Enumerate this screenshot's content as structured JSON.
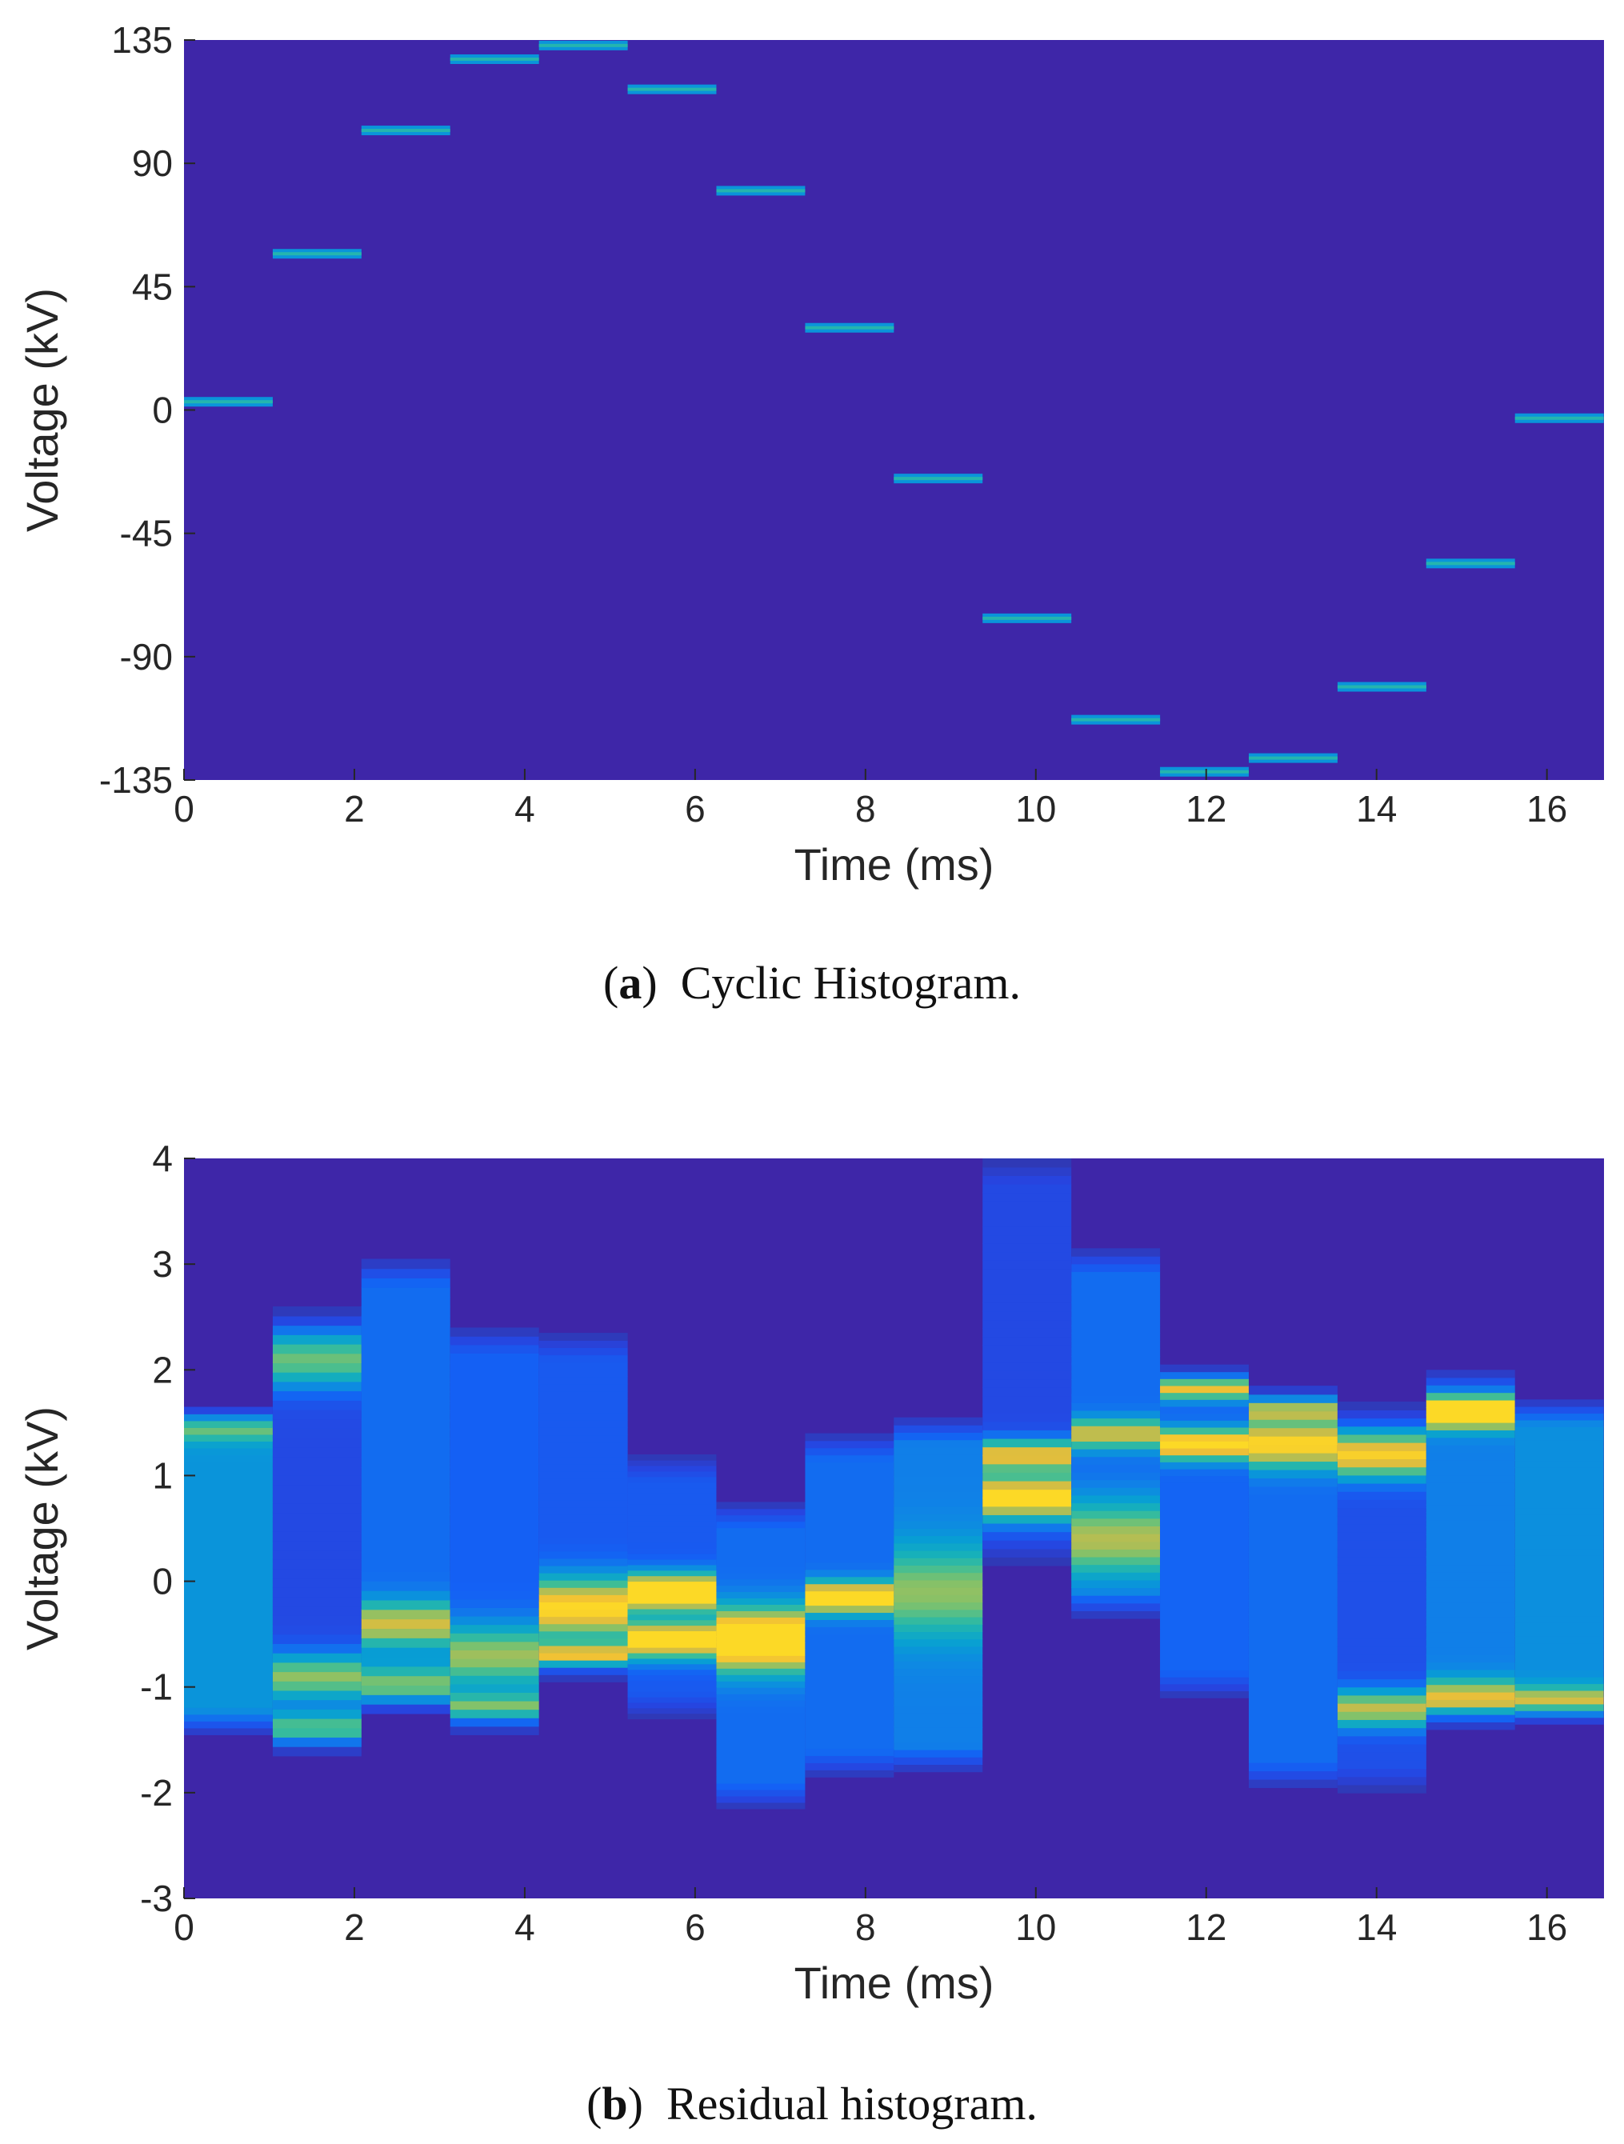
{
  "chart_data": [
    {
      "type": "heatmap",
      "id": "a",
      "caption_label": "a",
      "caption_text": "Cyclic Histogram.",
      "xlabel": "Time (ms)",
      "ylabel": "Voltage (kV)",
      "xlim": [
        0,
        16.67
      ],
      "ylim": [
        -135,
        135
      ],
      "xticks": [
        0,
        2,
        4,
        6,
        8,
        10,
        12,
        14,
        16
      ],
      "yticks": [
        -135,
        -90,
        -45,
        0,
        45,
        90,
        135
      ],
      "background_color": "#3e26a8",
      "segment_width_ms": 1.0417,
      "segments": [
        {
          "t0": 0.0,
          "v": 3
        },
        {
          "t0": 1.042,
          "v": 57
        },
        {
          "t0": 2.083,
          "v": 102
        },
        {
          "t0": 3.125,
          "v": 128
        },
        {
          "t0": 4.167,
          "v": 133
        },
        {
          "t0": 5.208,
          "v": 117
        },
        {
          "t0": 6.25,
          "v": 80
        },
        {
          "t0": 7.292,
          "v": 30
        },
        {
          "t0": 8.333,
          "v": -25
        },
        {
          "t0": 9.375,
          "v": -76
        },
        {
          "t0": 10.417,
          "v": -113
        },
        {
          "t0": 11.458,
          "v": -132
        },
        {
          "t0": 12.5,
          "v": -127
        },
        {
          "t0": 13.542,
          "v": -101
        },
        {
          "t0": 14.583,
          "v": -56
        },
        {
          "t0": 15.625,
          "v": -3
        }
      ]
    },
    {
      "type": "heatmap",
      "id": "b",
      "caption_label": "b",
      "caption_text": "Residual histogram.",
      "xlabel": "Time (ms)",
      "ylabel": "Voltage (kV)",
      "xlim": [
        0,
        16.67
      ],
      "ylim": [
        -3,
        4
      ],
      "xticks": [
        0,
        2,
        4,
        6,
        8,
        10,
        12,
        14,
        16
      ],
      "yticks": [
        -3,
        -2,
        -1,
        0,
        1,
        2,
        3,
        4
      ],
      "background_color": "#3e26a8",
      "segment_width_ms": 1.0417,
      "segments": [
        {
          "t0": 0.0,
          "lo": -1.45,
          "hi": 1.65,
          "base": 0.42,
          "peaks": [
            [
              1.5,
              0.1,
              0.45
            ]
          ]
        },
        {
          "t0": 1.042,
          "lo": -1.65,
          "hi": 2.6,
          "base": 0.2,
          "peaks": [
            [
              2.1,
              0.18,
              0.5
            ],
            [
              -0.9,
              0.15,
              0.55
            ],
            [
              -1.4,
              0.12,
              0.5
            ]
          ]
        },
        {
          "t0": 2.083,
          "lo": -1.25,
          "hi": 3.05,
          "base": 0.3,
          "peaks": [
            [
              -0.4,
              0.15,
              0.55
            ],
            [
              -1.0,
              0.15,
              0.45
            ]
          ]
        },
        {
          "t0": 3.125,
          "lo": -1.45,
          "hi": 2.4,
          "base": 0.27,
          "peaks": [
            [
              -0.7,
              0.2,
              0.5
            ],
            [
              -1.2,
              0.1,
              0.45
            ]
          ]
        },
        {
          "t0": 4.167,
          "lo": -0.95,
          "hi": 2.35,
          "base": 0.25,
          "peaks": [
            [
              -0.25,
              0.2,
              0.75
            ],
            [
              -0.7,
              0.08,
              0.65
            ]
          ]
        },
        {
          "t0": 5.208,
          "lo": -1.3,
          "hi": 1.2,
          "base": 0.25,
          "peaks": [
            [
              -0.1,
              0.12,
              0.95
            ],
            [
              -0.55,
              0.12,
              0.85
            ]
          ]
        },
        {
          "t0": 6.25,
          "lo": -2.15,
          "hi": 0.75,
          "base": 0.3,
          "peaks": [
            [
              -0.55,
              0.2,
              0.95
            ]
          ]
        },
        {
          "t0": 7.292,
          "lo": -1.85,
          "hi": 1.4,
          "base": 0.3,
          "peaks": [
            [
              -0.15,
              0.1,
              0.85
            ]
          ]
        },
        {
          "t0": 8.333,
          "lo": -1.8,
          "hi": 1.55,
          "base": 0.35,
          "peaks": [
            [
              -0.1,
              0.3,
              0.4
            ]
          ]
        },
        {
          "t0": 9.375,
          "lo": 0.15,
          "hi": 4.0,
          "base": 0.2,
          "peaks": [
            [
              0.8,
              0.15,
              0.85
            ],
            [
              1.2,
              0.1,
              0.7
            ]
          ]
        },
        {
          "t0": 10.417,
          "lo": -0.35,
          "hi": 3.15,
          "base": 0.3,
          "peaks": [
            [
              0.4,
              0.25,
              0.5
            ],
            [
              1.4,
              0.1,
              0.55
            ]
          ]
        },
        {
          "t0": 11.458,
          "lo": -1.1,
          "hi": 2.05,
          "base": 0.28,
          "peaks": [
            [
              1.3,
              0.1,
              0.8
            ],
            [
              1.85,
              0.08,
              0.75
            ]
          ]
        },
        {
          "t0": 12.5,
          "lo": -1.95,
          "hi": 1.85,
          "base": 0.3,
          "peaks": [
            [
              1.3,
              0.15,
              0.7
            ],
            [
              1.65,
              0.08,
              0.6
            ]
          ]
        },
        {
          "t0": 13.542,
          "lo": -2.0,
          "hi": 1.7,
          "base": 0.22,
          "peaks": [
            [
              1.2,
              0.15,
              0.75
            ],
            [
              -1.2,
              0.12,
              0.6
            ]
          ]
        },
        {
          "t0": 14.583,
          "lo": -1.4,
          "hi": 2.0,
          "base": 0.35,
          "peaks": [
            [
              1.6,
              0.1,
              0.95
            ],
            [
              -1.1,
              0.12,
              0.55
            ]
          ]
        },
        {
          "t0": 15.625,
          "lo": -1.35,
          "hi": 1.72,
          "base": 0.4,
          "peaks": [
            [
              -1.15,
              0.1,
              0.55
            ]
          ]
        }
      ]
    }
  ]
}
